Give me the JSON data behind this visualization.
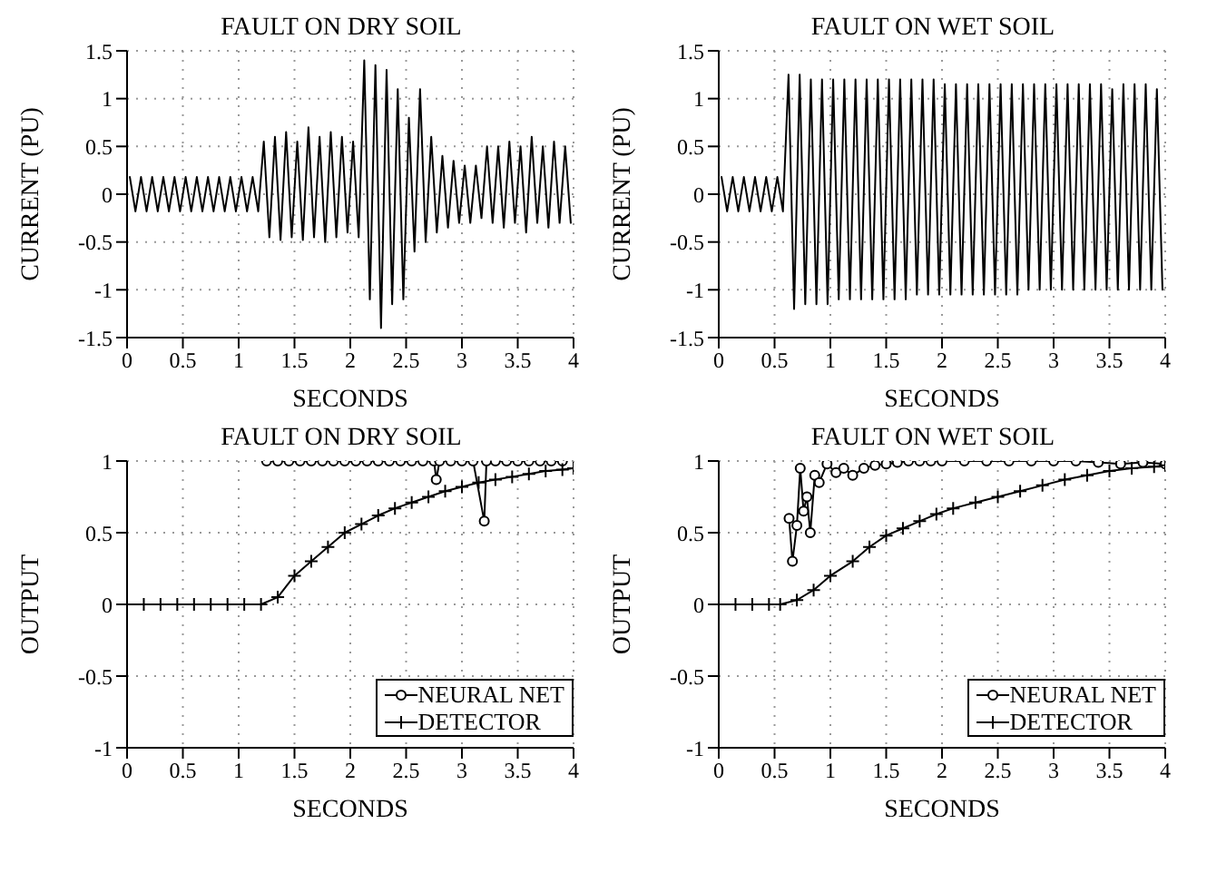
{
  "chart_data": [
    {
      "type": "line",
      "title": "FAULT ON DRY SOIL",
      "xlabel": "SECONDS",
      "ylabel": "CURRENT (PU)",
      "xlim": [
        0,
        4
      ],
      "xticks": [
        0,
        0.5,
        1,
        1.5,
        2,
        2.5,
        3,
        3.5,
        4
      ],
      "ylim": [
        -1.5,
        1.5
      ],
      "yticks": [
        -1.5,
        -1,
        -0.5,
        0,
        0.5,
        1,
        1.5
      ],
      "grid": true,
      "x": [
        0.025,
        0.075,
        0.125,
        0.175,
        0.225,
        0.275,
        0.325,
        0.375,
        0.425,
        0.475,
        0.525,
        0.575,
        0.625,
        0.675,
        0.725,
        0.775,
        0.825,
        0.875,
        0.925,
        0.975,
        1.025,
        1.075,
        1.125,
        1.175,
        1.225,
        1.275,
        1.325,
        1.375,
        1.425,
        1.475,
        1.525,
        1.575,
        1.625,
        1.675,
        1.725,
        1.775,
        1.825,
        1.875,
        1.925,
        1.975,
        2.025,
        2.075,
        2.125,
        2.175,
        2.225,
        2.275,
        2.325,
        2.375,
        2.425,
        2.475,
        2.525,
        2.575,
        2.625,
        2.675,
        2.725,
        2.775,
        2.825,
        2.875,
        2.925,
        2.975,
        3.025,
        3.075,
        3.125,
        3.175,
        3.225,
        3.275,
        3.325,
        3.375,
        3.425,
        3.475,
        3.525,
        3.575,
        3.625,
        3.675,
        3.725,
        3.775,
        3.825,
        3.875,
        3.925,
        3.975
      ],
      "series": [
        {
          "color": "#000000",
          "values": [
            0.18,
            -0.18,
            0.18,
            -0.18,
            0.18,
            -0.18,
            0.18,
            -0.18,
            0.18,
            -0.18,
            0.18,
            -0.18,
            0.18,
            -0.18,
            0.18,
            -0.18,
            0.18,
            -0.18,
            0.18,
            -0.18,
            0.18,
            -0.18,
            0.18,
            -0.18,
            0.55,
            -0.45,
            0.6,
            -0.48,
            0.65,
            -0.45,
            0.55,
            -0.48,
            0.7,
            -0.45,
            0.6,
            -0.5,
            0.65,
            -0.45,
            0.6,
            -0.4,
            0.55,
            -0.45,
            1.4,
            -1.1,
            1.35,
            -1.4,
            1.3,
            -1.15,
            1.1,
            -1.1,
            0.8,
            -0.6,
            1.1,
            -0.5,
            0.6,
            -0.4,
            0.4,
            -0.35,
            0.35,
            -0.3,
            0.3,
            -0.3,
            0.3,
            -0.25,
            0.5,
            -0.3,
            0.5,
            -0.35,
            0.55,
            -0.3,
            0.5,
            -0.4,
            0.6,
            -0.3,
            0.5,
            -0.35,
            0.55,
            -0.3,
            0.5,
            -0.3
          ]
        }
      ]
    },
    {
      "type": "line",
      "title": "FAULT ON WET SOIL",
      "xlabel": "SECONDS",
      "ylabel": "CURRENT (PU)",
      "xlim": [
        0,
        4
      ],
      "xticks": [
        0,
        0.5,
        1,
        1.5,
        2,
        2.5,
        3,
        3.5,
        4
      ],
      "ylim": [
        -1.5,
        1.5
      ],
      "yticks": [
        -1.5,
        -1,
        -0.5,
        0,
        0.5,
        1,
        1.5
      ],
      "grid": true,
      "x": [
        0.025,
        0.075,
        0.125,
        0.175,
        0.225,
        0.275,
        0.325,
        0.375,
        0.425,
        0.475,
        0.525,
        0.575,
        0.625,
        0.675,
        0.725,
        0.775,
        0.825,
        0.875,
        0.925,
        0.975,
        1.025,
        1.075,
        1.125,
        1.175,
        1.225,
        1.275,
        1.325,
        1.375,
        1.425,
        1.475,
        1.525,
        1.575,
        1.625,
        1.675,
        1.725,
        1.775,
        1.825,
        1.875,
        1.925,
        1.975,
        2.025,
        2.075,
        2.125,
        2.175,
        2.225,
        2.275,
        2.325,
        2.375,
        2.425,
        2.475,
        2.525,
        2.575,
        2.625,
        2.675,
        2.725,
        2.775,
        2.825,
        2.875,
        2.925,
        2.975,
        3.025,
        3.075,
        3.125,
        3.175,
        3.225,
        3.275,
        3.325,
        3.375,
        3.425,
        3.475,
        3.525,
        3.575,
        3.625,
        3.675,
        3.725,
        3.775,
        3.825,
        3.875,
        3.925,
        3.975
      ],
      "series": [
        {
          "color": "#000000",
          "values": [
            0.18,
            -0.18,
            0.18,
            -0.18,
            0.18,
            -0.18,
            0.18,
            -0.18,
            0.18,
            -0.18,
            0.18,
            -0.18,
            1.25,
            -1.2,
            1.25,
            -1.15,
            1.2,
            -1.15,
            1.2,
            -1.15,
            1.2,
            -1.1,
            1.2,
            -1.1,
            1.2,
            -1.1,
            1.2,
            -1.1,
            1.2,
            -1.1,
            1.2,
            -1.1,
            1.2,
            -1.1,
            1.2,
            -1.05,
            1.2,
            -1.05,
            1.2,
            -1.05,
            1.15,
            -1.05,
            1.15,
            -1.05,
            1.15,
            -1.05,
            1.15,
            -1.05,
            1.15,
            -1.05,
            1.15,
            -1.05,
            1.15,
            -1.05,
            1.15,
            -1,
            1.15,
            -1,
            1.15,
            -1,
            1.15,
            -1,
            1.15,
            -1,
            1.15,
            -1,
            1.15,
            -1,
            1.15,
            -1,
            1.1,
            -1,
            1.15,
            -1,
            1.15,
            -1,
            1.15,
            -1,
            1.1,
            -1
          ]
        }
      ]
    },
    {
      "type": "line",
      "title": "FAULT ON DRY SOIL",
      "xlabel": "SECONDS",
      "ylabel": "OUTPUT",
      "xlim": [
        0,
        4
      ],
      "xticks": [
        0,
        0.5,
        1,
        1.5,
        2,
        2.5,
        3,
        3.5,
        4
      ],
      "ylim": [
        -1,
        1
      ],
      "yticks": [
        -1,
        -0.5,
        0,
        0.5,
        1
      ],
      "grid": true,
      "legend": "bottom right",
      "series": [
        {
          "name": "NEURAL NET",
          "color": "#000000",
          "marker": "circle",
          "x": [
            1.25,
            1.35,
            1.45,
            1.55,
            1.65,
            1.75,
            1.85,
            1.95,
            2.05,
            2.15,
            2.25,
            2.35,
            2.45,
            2.55,
            2.65,
            2.75,
            2.77,
            2.8,
            2.9,
            3,
            3.1,
            3.2,
            3.22,
            3.3,
            3.4,
            3.5,
            3.6,
            3.7,
            3.8,
            3.9
          ],
          "values": [
            1,
            1,
            1,
            1,
            1,
            1,
            1,
            1,
            1,
            1,
            1,
            1,
            1,
            1,
            1,
            1,
            0.87,
            1,
            1,
            1,
            1,
            0.58,
            1,
            1,
            1,
            1,
            1,
            1,
            1,
            1
          ]
        },
        {
          "name": "DETECTOR",
          "color": "#000000",
          "marker": "cross",
          "x": [
            0,
            0.15,
            0.3,
            0.45,
            0.6,
            0.75,
            0.9,
            1.05,
            1.2,
            1.35,
            1.5,
            1.65,
            1.8,
            1.95,
            2.1,
            2.25,
            2.4,
            2.55,
            2.7,
            2.85,
            3,
            3.15,
            3.3,
            3.45,
            3.6,
            3.75,
            3.9,
            4
          ],
          "values": [
            0,
            0,
            0,
            0,
            0,
            0,
            0,
            0,
            0,
            0.05,
            0.2,
            0.3,
            0.4,
            0.5,
            0.56,
            0.62,
            0.67,
            0.71,
            0.75,
            0.79,
            0.82,
            0.85,
            0.87,
            0.89,
            0.91,
            0.93,
            0.94,
            0.95
          ]
        }
      ]
    },
    {
      "type": "line",
      "title": "FAULT ON WET SOIL",
      "xlabel": "SECONDS",
      "ylabel": "OUTPUT",
      "xlim": [
        0,
        4
      ],
      "xticks": [
        0,
        0.5,
        1,
        1.5,
        2,
        2.5,
        3,
        3.5,
        4
      ],
      "ylim": [
        -1,
        1
      ],
      "yticks": [
        -1,
        -0.5,
        0,
        0.5,
        1
      ],
      "grid": true,
      "legend": "bottom right",
      "series": [
        {
          "name": "NEURAL NET",
          "color": "#000000",
          "marker": "circle",
          "x": [
            0.63,
            0.66,
            0.7,
            0.73,
            0.76,
            0.79,
            0.82,
            0.86,
            0.9,
            0.97,
            1.05,
            1.12,
            1.2,
            1.3,
            1.4,
            1.5,
            1.6,
            1.7,
            1.8,
            1.9,
            2,
            2.2,
            2.4,
            2.6,
            2.8,
            3,
            3.2,
            3.4,
            3.6,
            3.8,
            4
          ],
          "values": [
            0.6,
            0.3,
            0.55,
            0.95,
            0.65,
            0.75,
            0.5,
            0.9,
            0.85,
            0.98,
            0.92,
            0.95,
            0.9,
            0.95,
            0.97,
            0.98,
            0.99,
            1,
            1,
            1,
            1,
            1,
            1,
            1,
            1,
            1,
            1,
            0.99,
            0.98,
            0.99,
            0.98
          ]
        },
        {
          "name": "DETECTOR",
          "color": "#000000",
          "marker": "cross",
          "x": [
            0,
            0.15,
            0.3,
            0.45,
            0.55,
            0.7,
            0.85,
            1,
            1.2,
            1.35,
            1.5,
            1.65,
            1.8,
            1.95,
            2.1,
            2.3,
            2.5,
            2.7,
            2.9,
            3.1,
            3.3,
            3.5,
            3.7,
            3.9,
            4
          ],
          "values": [
            0,
            0,
            0,
            0,
            0,
            0.03,
            0.1,
            0.2,
            0.3,
            0.4,
            0.48,
            0.53,
            0.58,
            0.63,
            0.67,
            0.71,
            0.75,
            0.79,
            0.83,
            0.87,
            0.9,
            0.93,
            0.95,
            0.96,
            0.97
          ]
        }
      ]
    }
  ]
}
